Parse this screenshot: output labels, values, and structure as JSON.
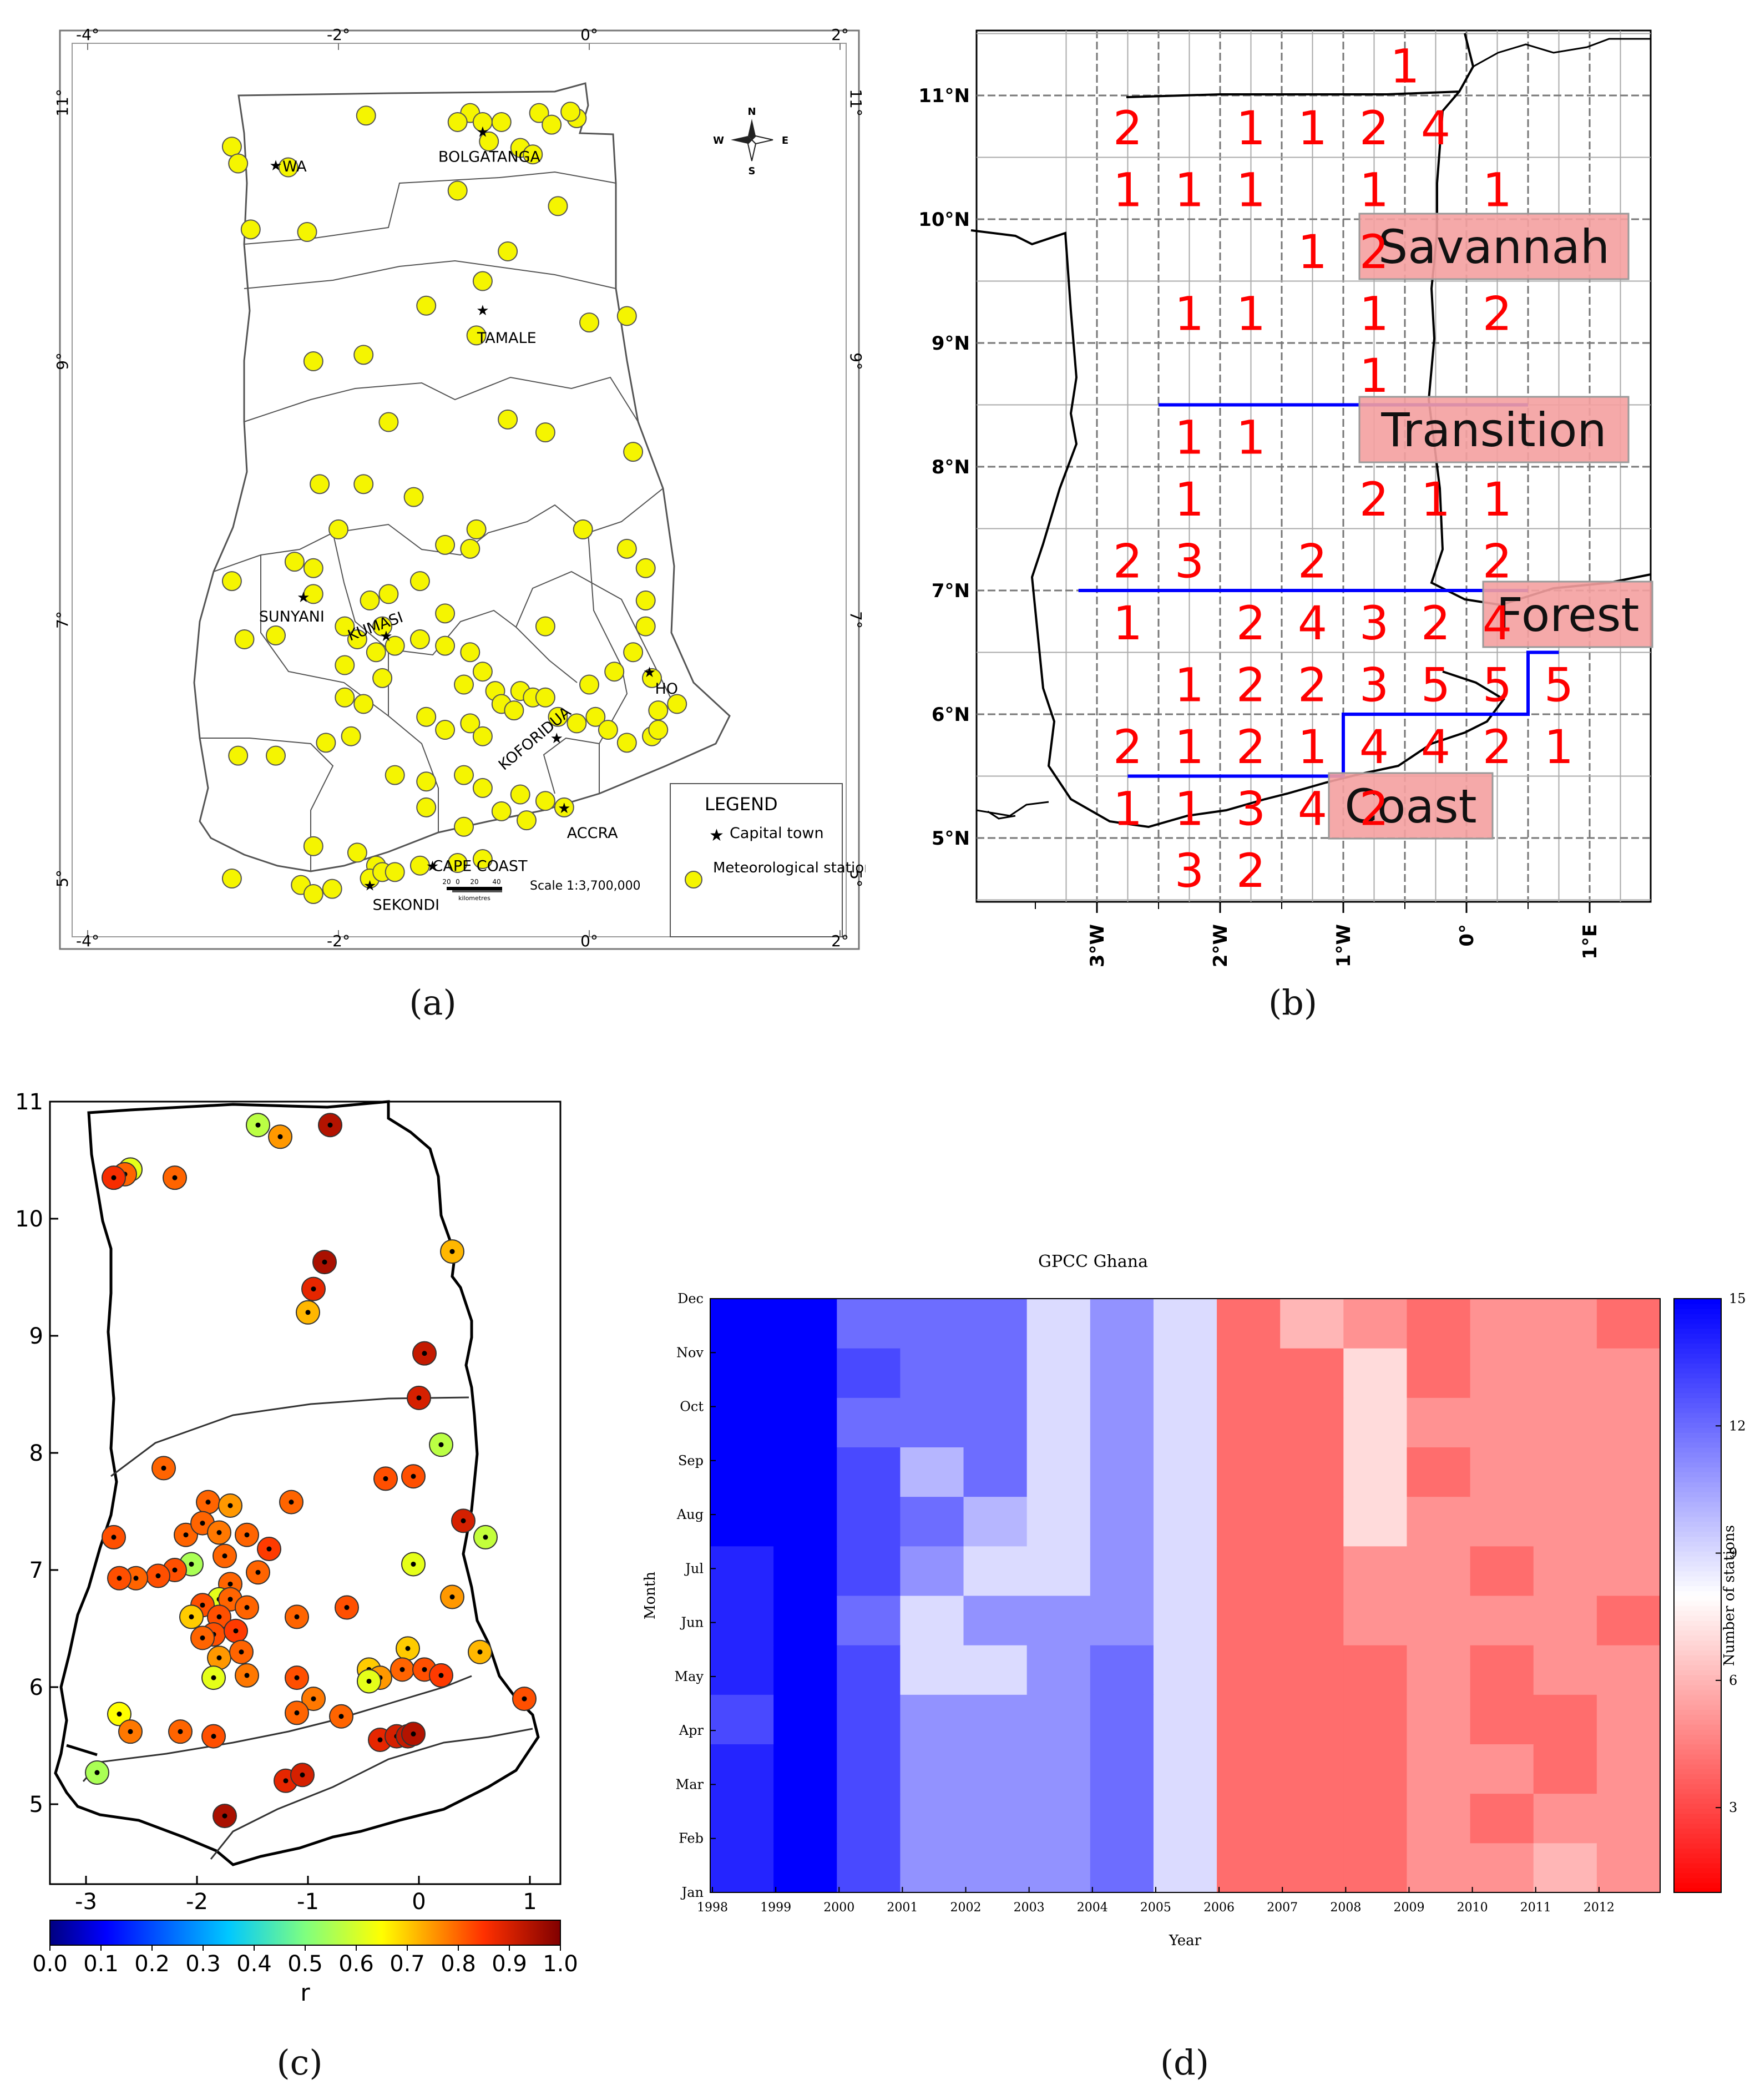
{
  "captions": {
    "a": "(a)",
    "b": "(b)",
    "c": "(c)",
    "d": "(d)"
  },
  "panel_a": {
    "top_ticks": [
      "-4°",
      "-2°",
      "0°",
      "2°"
    ],
    "bottom_ticks": [
      "-4°",
      "-2°",
      "0°",
      "2°"
    ],
    "left_ticks": [
      "11°",
      "9°",
      "7°",
      "5°"
    ],
    "right_ticks": [
      "11°",
      "9°",
      "7°",
      "5°"
    ],
    "compass": {
      "n": "N",
      "s": "S",
      "e": "E",
      "w": "W"
    },
    "towns": [
      "BOLGATANGA",
      "WA",
      "TAMALE",
      "SUNYANI",
      "KUMASI",
      "HO",
      "KOFORIDUA",
      "ACCRA",
      "CAPE COAST",
      "SEKONDI"
    ],
    "legend": {
      "title": "LEGEND",
      "capital": "Capital town",
      "station": "Meteorological station",
      "station_line2": "station"
    },
    "scale_text": "Scale 1:3,700,000",
    "scale_ticks": [
      "20",
      "0",
      "20",
      "40"
    ],
    "scale_units": "kilometres",
    "colors": {
      "station": "#f5f500",
      "outline": "#555555"
    }
  },
  "panel_b": {
    "x_ticks": [
      "3°W",
      "2°W",
      "1°W",
      "0°",
      "1°E"
    ],
    "y_ticks": [
      "11°N",
      "10°N",
      "9°N",
      "8°N",
      "7°N",
      "6°N",
      "5°N"
    ],
    "zone_labels": [
      "Savannah",
      "Transition",
      "Forest",
      "Coast"
    ],
    "cell_counts": [
      {
        "lon": -0.5,
        "lat": 11.25,
        "n": "1"
      },
      {
        "lon": -2.75,
        "lat": 10.75,
        "n": "2"
      },
      {
        "lon": -1.75,
        "lat": 10.75,
        "n": "1"
      },
      {
        "lon": -1.25,
        "lat": 10.75,
        "n": "1"
      },
      {
        "lon": -0.75,
        "lat": 10.75,
        "n": "2"
      },
      {
        "lon": -0.25,
        "lat": 10.75,
        "n": "4"
      },
      {
        "lon": -2.75,
        "lat": 10.25,
        "n": "1"
      },
      {
        "lon": -2.25,
        "lat": 10.25,
        "n": "1"
      },
      {
        "lon": -1.75,
        "lat": 10.25,
        "n": "1"
      },
      {
        "lon": -0.75,
        "lat": 10.25,
        "n": "1"
      },
      {
        "lon": 0.25,
        "lat": 10.25,
        "n": "1"
      },
      {
        "lon": -1.25,
        "lat": 9.75,
        "n": "1"
      },
      {
        "lon": -0.75,
        "lat": 9.75,
        "n": "2"
      },
      {
        "lon": -2.25,
        "lat": 9.25,
        "n": "1"
      },
      {
        "lon": -1.75,
        "lat": 9.25,
        "n": "1"
      },
      {
        "lon": -0.75,
        "lat": 9.25,
        "n": "1"
      },
      {
        "lon": 0.25,
        "lat": 9.25,
        "n": "2"
      },
      {
        "lon": -0.75,
        "lat": 8.75,
        "n": "1"
      },
      {
        "lon": -2.25,
        "lat": 8.25,
        "n": "1"
      },
      {
        "lon": -1.75,
        "lat": 8.25,
        "n": "1"
      },
      {
        "lon": -2.25,
        "lat": 7.75,
        "n": "1"
      },
      {
        "lon": -0.75,
        "lat": 7.75,
        "n": "2"
      },
      {
        "lon": -0.25,
        "lat": 7.75,
        "n": "1"
      },
      {
        "lon": 0.25,
        "lat": 7.75,
        "n": "1"
      },
      {
        "lon": -2.75,
        "lat": 7.25,
        "n": "2"
      },
      {
        "lon": -2.25,
        "lat": 7.25,
        "n": "3"
      },
      {
        "lon": -1.25,
        "lat": 7.25,
        "n": "2"
      },
      {
        "lon": 0.25,
        "lat": 7.25,
        "n": "2"
      },
      {
        "lon": -2.75,
        "lat": 6.75,
        "n": "1"
      },
      {
        "lon": -1.75,
        "lat": 6.75,
        "n": "2"
      },
      {
        "lon": -1.25,
        "lat": 6.75,
        "n": "4"
      },
      {
        "lon": -0.75,
        "lat": 6.75,
        "n": "3"
      },
      {
        "lon": -0.25,
        "lat": 6.75,
        "n": "2"
      },
      {
        "lon": 0.25,
        "lat": 6.75,
        "n": "4"
      },
      {
        "lon": -2.25,
        "lat": 6.25,
        "n": "1"
      },
      {
        "lon": -1.75,
        "lat": 6.25,
        "n": "2"
      },
      {
        "lon": -1.25,
        "lat": 6.25,
        "n": "2"
      },
      {
        "lon": -0.75,
        "lat": 6.25,
        "n": "3"
      },
      {
        "lon": -0.25,
        "lat": 6.25,
        "n": "5"
      },
      {
        "lon": 0.25,
        "lat": 6.25,
        "n": "5"
      },
      {
        "lon": 0.75,
        "lat": 6.25,
        "n": "5"
      },
      {
        "lon": -2.75,
        "lat": 5.75,
        "n": "2"
      },
      {
        "lon": -2.25,
        "lat": 5.75,
        "n": "1"
      },
      {
        "lon": -1.75,
        "lat": 5.75,
        "n": "2"
      },
      {
        "lon": -1.25,
        "lat": 5.75,
        "n": "1"
      },
      {
        "lon": -0.75,
        "lat": 5.75,
        "n": "4"
      },
      {
        "lon": -0.25,
        "lat": 5.75,
        "n": "4"
      },
      {
        "lon": 0.25,
        "lat": 5.75,
        "n": "2"
      },
      {
        "lon": 0.75,
        "lat": 5.75,
        "n": "1"
      },
      {
        "lon": -2.75,
        "lat": 5.25,
        "n": "1"
      },
      {
        "lon": -2.25,
        "lat": 5.25,
        "n": "1"
      },
      {
        "lon": -1.75,
        "lat": 5.25,
        "n": "3"
      },
      {
        "lon": -1.25,
        "lat": 5.25,
        "n": "4"
      },
      {
        "lon": -0.75,
        "lat": 5.25,
        "n": "2"
      },
      {
        "lon": -2.25,
        "lat": 4.75,
        "n": "3"
      },
      {
        "lon": -1.75,
        "lat": 4.75,
        "n": "2"
      }
    ],
    "colors": {
      "numbers": "#ff0000",
      "zone_line": "#0000ff",
      "zone_box": "#f4a0a0"
    }
  },
  "panel_c": {
    "x_ticks": [
      "-3",
      "-2",
      "-1",
      "0",
      "1"
    ],
    "y_ticks": [
      "11",
      "10",
      "9",
      "8",
      "7",
      "6",
      "5"
    ],
    "colorbar_ticks": [
      "0.0",
      "0.1",
      "0.2",
      "0.3",
      "0.4",
      "0.5",
      "0.6",
      "0.7",
      "0.8",
      "0.9",
      "1.0"
    ],
    "colorbar_label": "r",
    "stations": [
      {
        "lon": -1.45,
        "lat": 10.8,
        "r": 0.57
      },
      {
        "lon": -1.25,
        "lat": 10.7,
        "r": 0.75
      },
      {
        "lon": -0.8,
        "lat": 10.8,
        "r": 0.94
      },
      {
        "lon": -2.6,
        "lat": 10.42,
        "r": 0.62
      },
      {
        "lon": -2.65,
        "lat": 10.38,
        "r": 0.8
      },
      {
        "lon": -2.75,
        "lat": 10.35,
        "r": 0.86
      },
      {
        "lon": -2.2,
        "lat": 10.35,
        "r": 0.8
      },
      {
        "lon": 0.3,
        "lat": 9.72,
        "r": 0.72
      },
      {
        "lon": -0.85,
        "lat": 9.63,
        "r": 0.95
      },
      {
        "lon": -0.95,
        "lat": 9.4,
        "r": 0.88
      },
      {
        "lon": -1.0,
        "lat": 9.2,
        "r": 0.72
      },
      {
        "lon": 0.05,
        "lat": 8.85,
        "r": 0.92
      },
      {
        "lon": 0.0,
        "lat": 8.47,
        "r": 0.9
      },
      {
        "lon": 0.2,
        "lat": 8.07,
        "r": 0.57
      },
      {
        "lon": -2.3,
        "lat": 7.87,
        "r": 0.8
      },
      {
        "lon": -0.3,
        "lat": 7.78,
        "r": 0.82
      },
      {
        "lon": -0.05,
        "lat": 7.8,
        "r": 0.82
      },
      {
        "lon": -1.9,
        "lat": 7.58,
        "r": 0.8
      },
      {
        "lon": -1.7,
        "lat": 7.55,
        "r": 0.75
      },
      {
        "lon": -1.15,
        "lat": 7.58,
        "r": 0.8
      },
      {
        "lon": -2.1,
        "lat": 7.3,
        "r": 0.8
      },
      {
        "lon": -1.95,
        "lat": 7.4,
        "r": 0.8
      },
      {
        "lon": -2.75,
        "lat": 7.28,
        "r": 0.82
      },
      {
        "lon": 0.4,
        "lat": 7.42,
        "r": 0.9
      },
      {
        "lon": 0.6,
        "lat": 7.28,
        "r": 0.58
      },
      {
        "lon": -1.8,
        "lat": 7.32,
        "r": 0.78
      },
      {
        "lon": -1.55,
        "lat": 7.3,
        "r": 0.8
      },
      {
        "lon": -1.35,
        "lat": 7.18,
        "r": 0.84
      },
      {
        "lon": -1.75,
        "lat": 7.12,
        "r": 0.8
      },
      {
        "lon": -2.05,
        "lat": 7.05,
        "r": 0.55
      },
      {
        "lon": -2.2,
        "lat": 7.0,
        "r": 0.82
      },
      {
        "lon": -2.35,
        "lat": 6.95,
        "r": 0.82
      },
      {
        "lon": -2.55,
        "lat": 6.93,
        "r": 0.8
      },
      {
        "lon": -2.7,
        "lat": 6.93,
        "r": 0.82
      },
      {
        "lon": -1.45,
        "lat": 6.98,
        "r": 0.8
      },
      {
        "lon": -1.7,
        "lat": 6.88,
        "r": 0.8
      },
      {
        "lon": -0.05,
        "lat": 7.05,
        "r": 0.62
      },
      {
        "lon": -1.8,
        "lat": 6.75,
        "r": 0.62
      },
      {
        "lon": -1.95,
        "lat": 6.7,
        "r": 0.82
      },
      {
        "lon": -1.7,
        "lat": 6.75,
        "r": 0.8
      },
      {
        "lon": -1.55,
        "lat": 6.68,
        "r": 0.8
      },
      {
        "lon": -1.8,
        "lat": 6.6,
        "r": 0.82
      },
      {
        "lon": -0.65,
        "lat": 6.68,
        "r": 0.82
      },
      {
        "lon": 0.3,
        "lat": 6.77,
        "r": 0.75
      },
      {
        "lon": -2.05,
        "lat": 6.6,
        "r": 0.7
      },
      {
        "lon": -1.1,
        "lat": 6.6,
        "r": 0.8
      },
      {
        "lon": -1.85,
        "lat": 6.45,
        "r": 0.82
      },
      {
        "lon": -1.65,
        "lat": 6.48,
        "r": 0.84
      },
      {
        "lon": -1.95,
        "lat": 6.42,
        "r": 0.8
      },
      {
        "lon": -1.8,
        "lat": 6.25,
        "r": 0.75
      },
      {
        "lon": -1.6,
        "lat": 6.3,
        "r": 0.8
      },
      {
        "lon": -1.85,
        "lat": 6.08,
        "r": 0.62
      },
      {
        "lon": -1.55,
        "lat": 6.1,
        "r": 0.78
      },
      {
        "lon": -1.1,
        "lat": 6.08,
        "r": 0.82
      },
      {
        "lon": -0.1,
        "lat": 6.33,
        "r": 0.7
      },
      {
        "lon": -0.45,
        "lat": 6.15,
        "r": 0.7
      },
      {
        "lon": -0.35,
        "lat": 6.08,
        "r": 0.75
      },
      {
        "lon": -0.45,
        "lat": 6.05,
        "r": 0.62
      },
      {
        "lon": -0.15,
        "lat": 6.15,
        "r": 0.8
      },
      {
        "lon": 0.05,
        "lat": 6.15,
        "r": 0.82
      },
      {
        "lon": 0.2,
        "lat": 6.1,
        "r": 0.84
      },
      {
        "lon": 0.55,
        "lat": 6.3,
        "r": 0.72
      },
      {
        "lon": -0.95,
        "lat": 5.9,
        "r": 0.78
      },
      {
        "lon": -1.1,
        "lat": 5.78,
        "r": 0.8
      },
      {
        "lon": -0.7,
        "lat": 5.75,
        "r": 0.8
      },
      {
        "lon": -2.7,
        "lat": 5.77,
        "r": 0.65
      },
      {
        "lon": -2.6,
        "lat": 5.62,
        "r": 0.78
      },
      {
        "lon": -2.15,
        "lat": 5.62,
        "r": 0.8
      },
      {
        "lon": -1.85,
        "lat": 5.58,
        "r": 0.82
      },
      {
        "lon": -0.35,
        "lat": 5.55,
        "r": 0.88
      },
      {
        "lon": -0.2,
        "lat": 5.58,
        "r": 0.9
      },
      {
        "lon": -0.1,
        "lat": 5.58,
        "r": 0.92
      },
      {
        "lon": -0.05,
        "lat": 5.6,
        "r": 0.94
      },
      {
        "lon": 0.95,
        "lat": 5.9,
        "r": 0.82
      },
      {
        "lon": -2.9,
        "lat": 5.27,
        "r": 0.55
      },
      {
        "lon": -1.2,
        "lat": 5.2,
        "r": 0.88
      },
      {
        "lon": -1.05,
        "lat": 5.25,
        "r": 0.9
      },
      {
        "lon": -1.75,
        "lat": 4.9,
        "r": 0.95
      }
    ]
  },
  "panel_d": {
    "chart_data": {
      "type": "heatmap",
      "title": "GPCC Ghana",
      "xlabel": "Year",
      "ylabel": "Month",
      "colorbar_label": "Number of stations",
      "colorbar_ticks": [
        "3",
        "6",
        "9",
        "12",
        "15"
      ],
      "vmin": 1,
      "vmax": 15,
      "x": [
        "1998",
        "1999",
        "2000",
        "2001",
        "2002",
        "2003",
        "2004",
        "2005",
        "2006",
        "2007",
        "2008",
        "2009",
        "2010",
        "2011",
        "2012"
      ],
      "y": [
        "Jan",
        "Feb",
        "Mar",
        "Apr",
        "May",
        "Jun",
        "Jul",
        "Aug",
        "Sep",
        "Oct",
        "Nov",
        "Dec"
      ],
      "values": [
        [
          14,
          15,
          13,
          11,
          11,
          11,
          12,
          9,
          4,
          4,
          4,
          5,
          5,
          6,
          5
        ],
        [
          14,
          15,
          13,
          11,
          11,
          11,
          12,
          9,
          4,
          4,
          4,
          5,
          4,
          5,
          5
        ],
        [
          14,
          15,
          13,
          11,
          11,
          11,
          12,
          9,
          4,
          4,
          4,
          5,
          5,
          4,
          5
        ],
        [
          13,
          15,
          13,
          11,
          11,
          11,
          12,
          9,
          4,
          4,
          4,
          5,
          4,
          4,
          5
        ],
        [
          14,
          15,
          13,
          9,
          9,
          11,
          12,
          9,
          4,
          4,
          4,
          5,
          4,
          5,
          5
        ],
        [
          14,
          15,
          12,
          9,
          11,
          11,
          11,
          9,
          4,
          4,
          5,
          5,
          5,
          5,
          4
        ],
        [
          14,
          15,
          13,
          11,
          9,
          9,
          11,
          9,
          4,
          4,
          5,
          5,
          4,
          5,
          5
        ],
        [
          15,
          15,
          13,
          12,
          10,
          9,
          11,
          9,
          4,
          4,
          7,
          5,
          5,
          5,
          5
        ],
        [
          15,
          15,
          13,
          10,
          12,
          9,
          11,
          9,
          4,
          4,
          7,
          4,
          5,
          5,
          5
        ],
        [
          15,
          15,
          12,
          12,
          12,
          9,
          11,
          9,
          4,
          4,
          7,
          5,
          5,
          5,
          5
        ],
        [
          15,
          15,
          13,
          12,
          12,
          9,
          11,
          9,
          4,
          4,
          7,
          4,
          5,
          5,
          5
        ],
        [
          15,
          15,
          12,
          12,
          12,
          9,
          11,
          9,
          4,
          6,
          5,
          4,
          5,
          5,
          4
        ]
      ]
    }
  }
}
